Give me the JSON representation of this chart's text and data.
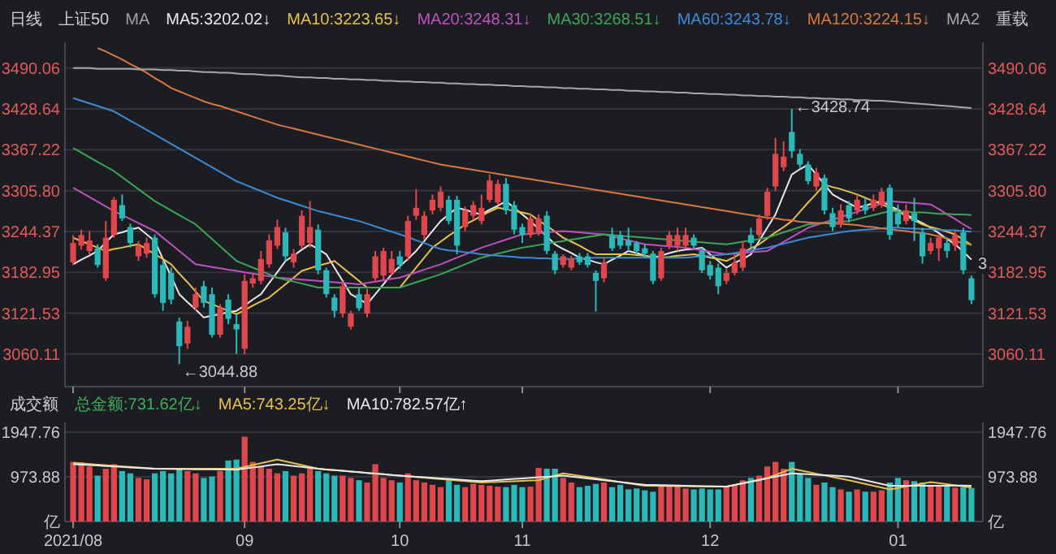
{
  "chart_data": [
    {
      "type": "candlestick",
      "title": "日线",
      "subtitle": "上证50",
      "legend_title": "MA",
      "legend": "top",
      "grid": "y",
      "tick_labels": "y",
      "categories": [
        "2021/08",
        null,
        null,
        null,
        null,
        null,
        null,
        null,
        null,
        null,
        null,
        null,
        null,
        null,
        null,
        null,
        null,
        null,
        null,
        null,
        null,
        "09",
        null,
        null,
        null,
        null,
        null,
        null,
        null,
        null,
        null,
        null,
        null,
        null,
        null,
        null,
        null,
        null,
        null,
        null,
        "10",
        null,
        null,
        null,
        null,
        null,
        null,
        null,
        null,
        null,
        null,
        null,
        null,
        null,
        null,
        "11",
        null,
        null,
        null,
        null,
        null,
        null,
        null,
        null,
        null,
        null,
        null,
        null,
        null,
        null,
        null,
        null,
        null,
        null,
        null,
        null,
        null,
        null,
        "12",
        null,
        null,
        null,
        null,
        null,
        null,
        null,
        null,
        null,
        null,
        null,
        null,
        null,
        null,
        null,
        null,
        null,
        null,
        null,
        null,
        null,
        null,
        "01",
        null,
        null,
        null,
        null,
        null,
        null,
        null,
        null,
        null
      ],
      "ohlc": [
        [
          3198,
          3239,
          3194,
          3227
        ],
        [
          3223,
          3247,
          3217,
          3239
        ],
        [
          3215,
          3245,
          3210,
          3231
        ],
        [
          3219,
          3225,
          3190,
          3194
        ],
        [
          3174,
          3260,
          3170,
          3235
        ],
        [
          3239,
          3296,
          3235,
          3292
        ],
        [
          3284,
          3300,
          3260,
          3264
        ],
        [
          3251,
          3256,
          3220,
          3227
        ],
        [
          3207,
          3230,
          3200,
          3223
        ],
        [
          3211,
          3235,
          3205,
          3227
        ],
        [
          3235,
          3240,
          3145,
          3150
        ],
        [
          3194,
          3200,
          3125,
          3137
        ],
        [
          3182,
          3190,
          3135,
          3142
        ],
        [
          3109,
          3115,
          3044.88,
          3072
        ],
        [
          3076,
          3110,
          3068,
          3101
        ],
        [
          3130,
          3160,
          3125,
          3150
        ],
        [
          3162,
          3170,
          3130,
          3137
        ],
        [
          3150,
          3160,
          3085,
          3089
        ],
        [
          3089,
          3135,
          3085,
          3129
        ],
        [
          3142,
          3150,
          3105,
          3113
        ],
        [
          3105,
          3120,
          3060,
          3097
        ],
        [
          3068,
          3180,
          3060,
          3170
        ],
        [
          3166,
          3180,
          3160,
          3174
        ],
        [
          3170,
          3215,
          3165,
          3203
        ],
        [
          3195,
          3240,
          3190,
          3231
        ],
        [
          3223,
          3262,
          3218,
          3251
        ],
        [
          3243,
          3250,
          3200,
          3207
        ],
        [
          3198,
          3218,
          3190,
          3211
        ],
        [
          3223,
          3276,
          3218,
          3268
        ],
        [
          3227,
          3290,
          3220,
          3251
        ],
        [
          3247,
          3255,
          3180,
          3186
        ],
        [
          3186,
          3190,
          3145,
          3150
        ],
        [
          3145,
          3150,
          3115,
          3125
        ],
        [
          3121,
          3170,
          3115,
          3162
        ],
        [
          3101,
          3125,
          3097,
          3121
        ],
        [
          3150,
          3160,
          3125,
          3129
        ],
        [
          3121,
          3158,
          3115,
          3150
        ],
        [
          3174,
          3215,
          3168,
          3207
        ],
        [
          3178,
          3220,
          3172,
          3215
        ],
        [
          3182,
          3215,
          3178,
          3203
        ],
        [
          3207,
          3215,
          3188,
          3194
        ],
        [
          3207,
          3268,
          3200,
          3260
        ],
        [
          3268,
          3308,
          3262,
          3280
        ],
        [
          3239,
          3275,
          3232,
          3268
        ],
        [
          3276,
          3300,
          3270,
          3292
        ],
        [
          3280,
          3312,
          3275,
          3304
        ],
        [
          3292,
          3298,
          3255,
          3260
        ],
        [
          3292,
          3298,
          3210,
          3223
        ],
        [
          3251,
          3282,
          3245,
          3276
        ],
        [
          3268,
          3290,
          3262,
          3284
        ],
        [
          3260,
          3300,
          3255,
          3280
        ],
        [
          3292,
          3330,
          3288,
          3321
        ],
        [
          3288,
          3322,
          3284,
          3316
        ],
        [
          3316,
          3325,
          3270,
          3276
        ],
        [
          3284,
          3290,
          3240,
          3247
        ],
        [
          3251,
          3256,
          3227,
          3239
        ],
        [
          3239,
          3270,
          3235,
          3264
        ],
        [
          3243,
          3270,
          3238,
          3264
        ],
        [
          3268,
          3275,
          3210,
          3215
        ],
        [
          3211,
          3215,
          3180,
          3186
        ],
        [
          3194,
          3210,
          3190,
          3207
        ],
        [
          3190,
          3208,
          3186,
          3203
        ],
        [
          3207,
          3212,
          3194,
          3198
        ],
        [
          3207,
          3212,
          3190,
          3194
        ],
        [
          3182,
          3186,
          3124,
          3170
        ],
        [
          3174,
          3205,
          3168,
          3198
        ],
        [
          3239,
          3250,
          3215,
          3219
        ],
        [
          3239,
          3245,
          3218,
          3223
        ],
        [
          3231,
          3250,
          3215,
          3223
        ],
        [
          3227,
          3230,
          3210,
          3215
        ],
        [
          3219,
          3225,
          3205,
          3211
        ],
        [
          3211,
          3215,
          3165,
          3170
        ],
        [
          3174,
          3220,
          3170,
          3215
        ],
        [
          3223,
          3245,
          3218,
          3239
        ],
        [
          3223,
          3250,
          3215,
          3239
        ],
        [
          3223,
          3250,
          3218,
          3239
        ],
        [
          3235,
          3240,
          3220,
          3223
        ],
        [
          3215,
          3220,
          3182,
          3186
        ],
        [
          3194,
          3200,
          3172,
          3178
        ],
        [
          3190,
          3196,
          3150,
          3162
        ],
        [
          3170,
          3188,
          3165,
          3182
        ],
        [
          3182,
          3210,
          3178,
          3198
        ],
        [
          3190,
          3230,
          3185,
          3219
        ],
        [
          3239,
          3250,
          3220,
          3227
        ],
        [
          3239,
          3270,
          3235,
          3264
        ],
        [
          3268,
          3310,
          3262,
          3304
        ],
        [
          3312,
          3385,
          3305,
          3361
        ],
        [
          3341,
          3380,
          3335,
          3357
        ],
        [
          3394,
          3428.74,
          3355,
          3365
        ],
        [
          3361,
          3368,
          3340,
          3345
        ],
        [
          3345,
          3350,
          3315,
          3320
        ],
        [
          3312,
          3340,
          3305,
          3333
        ],
        [
          3325,
          3330,
          3270,
          3276
        ],
        [
          3272,
          3280,
          3245,
          3251
        ],
        [
          3255,
          3285,
          3250,
          3276
        ],
        [
          3284,
          3290,
          3258,
          3264
        ],
        [
          3276,
          3300,
          3270,
          3292
        ],
        [
          3284,
          3295,
          3270,
          3276
        ],
        [
          3280,
          3300,
          3275,
          3292
        ],
        [
          3284,
          3310,
          3280,
          3304
        ],
        [
          3310,
          3315,
          3232,
          3239
        ],
        [
          3272,
          3285,
          3250,
          3255
        ],
        [
          3260,
          3285,
          3255,
          3276
        ],
        [
          3272,
          3295,
          3230,
          3260
        ],
        [
          3243,
          3250,
          3196,
          3207
        ],
        [
          3215,
          3235,
          3210,
          3227
        ],
        [
          3219,
          3240,
          3200,
          3235
        ],
        [
          3227,
          3235,
          3205,
          3215
        ],
        [
          3223,
          3245,
          3215,
          3239
        ],
        [
          3243,
          3250,
          3180,
          3186
        ],
        [
          3174,
          3178,
          3135,
          3141
        ]
      ],
      "colors": [
        "#e0474c",
        "#e0474c",
        "#e0474c",
        "#2bb8b8",
        "#e0474c",
        "#e0474c",
        "#2bb8b8",
        "#2bb8b8",
        "#e0474c",
        "#e0474c",
        "#2bb8b8",
        "#2bb8b8",
        "#2bb8b8",
        "#2bb8b8",
        "#e0474c",
        "#e0474c",
        "#2bb8b8",
        "#2bb8b8",
        "#e0474c",
        "#2bb8b8",
        "#2bb8b8",
        "#e0474c",
        "#e0474c",
        "#e0474c",
        "#e0474c",
        "#e0474c",
        "#2bb8b8",
        "#e0474c",
        "#e0474c",
        "#e0474c",
        "#2bb8b8",
        "#2bb8b8",
        "#2bb8b8",
        "#e0474c",
        "#e0474c",
        "#2bb8b8",
        "#e0474c",
        "#e0474c",
        "#e0474c",
        "#e0474c",
        "#2bb8b8",
        "#e0474c",
        "#e0474c",
        "#e0474c",
        "#e0474c",
        "#e0474c",
        "#2bb8b8",
        "#2bb8b8",
        "#e0474c",
        "#e0474c",
        "#e0474c",
        "#e0474c",
        "#e0474c",
        "#2bb8b8",
        "#2bb8b8",
        "#2bb8b8",
        "#e0474c",
        "#e0474c",
        "#2bb8b8",
        "#2bb8b8",
        "#e0474c",
        "#e0474c",
        "#2bb8b8",
        "#2bb8b8",
        "#2bb8b8",
        "#e0474c",
        "#2bb8b8",
        "#2bb8b8",
        "#2bb8b8",
        "#2bb8b8",
        "#2bb8b8",
        "#2bb8b8",
        "#e0474c",
        "#e0474c",
        "#e0474c",
        "#e0474c",
        "#2bb8b8",
        "#2bb8b8",
        "#2bb8b8",
        "#2bb8b8",
        "#e0474c",
        "#e0474c",
        "#e0474c",
        "#2bb8b8",
        "#e0474c",
        "#e0474c",
        "#e0474c",
        "#e0474c",
        "#2bb8b8",
        "#2bb8b8",
        "#2bb8b8",
        "#e0474c",
        "#2bb8b8",
        "#2bb8b8",
        "#e0474c",
        "#2bb8b8",
        "#e0474c",
        "#2bb8b8",
        "#e0474c",
        "#e0474c",
        "#2bb8b8",
        "#2bb8b8",
        "#e0474c",
        "#2bb8b8",
        "#2bb8b8",
        "#e0474c",
        "#e0474c",
        "#2bb8b8",
        "#e0474c",
        "#2bb8b8",
        "#2bb8b8"
      ],
      "series": [
        {
          "name": "MA5:3202.02↓",
          "type": "line",
          "color": "#e8e8e8",
          "values": [
            3195,
            3202,
            3208,
            3215,
            3228,
            3240,
            3243,
            3247,
            3250,
            3240,
            3230,
            3203,
            3177,
            3150,
            3138,
            3127,
            3115,
            3118,
            3120,
            3123,
            3125,
            3133,
            3142,
            3150,
            3167,
            3183,
            3200,
            3208,
            3217,
            3225,
            3218,
            3210,
            3190,
            3170,
            3150,
            3143,
            3135,
            3150,
            3165,
            3180,
            3192,
            3203,
            3215,
            3230,
            3245,
            3260,
            3270,
            3280,
            3277,
            3273,
            3270,
            3277,
            3283,
            3290,
            3280,
            3270,
            3260,
            3248,
            3237,
            3225,
            3218,
            3212,
            3205,
            3202,
            3198,
            3195,
            3202,
            3208,
            3215,
            3212,
            3208,
            3205,
            3208,
            3212,
            3215,
            3217,
            3218,
            3220,
            3210,
            3200,
            3190,
            3197,
            3203,
            3210,
            3230,
            3250,
            3270,
            3300,
            3330,
            3338,
            3345,
            3330,
            3315,
            3300,
            3293,
            3287,
            3280,
            3283,
            3287,
            3290,
            3283,
            3277,
            3270,
            3263,
            3257,
            3250,
            3242,
            3233,
            3225,
            3214,
            3202
          ]
        },
        {
          "name": "MA10:3223.65↓",
          "type": "line",
          "color": "#e6c14a",
          "values": [
            3235,
            3230,
            3225,
            3220,
            3215,
            3218,
            3220,
            3223,
            3225,
            3218,
            3210,
            3203,
            3195,
            3181,
            3168,
            3154,
            3140,
            3135,
            3130,
            3125,
            3120,
            3126,
            3133,
            3139,
            3145,
            3155,
            3165,
            3175,
            3185,
            3189,
            3193,
            3196,
            3200,
            3190,
            3180,
            3170,
            3160,
            3160,
            3160,
            3160,
            3160,
            3175,
            3190,
            3205,
            3220,
            3229,
            3238,
            3246,
            3255,
            3261,
            3268,
            3274,
            3280,
            3278,
            3275,
            3273,
            3270,
            3261,
            3253,
            3244,
            3235,
            3229,
            3223,
            3216,
            3210,
            3210,
            3210,
            3210,
            3210,
            3209,
            3208,
            3206,
            3205,
            3206,
            3208,
            3209,
            3210,
            3208,
            3205,
            3203,
            3200,
            3206,
            3213,
            3219,
            3225,
            3234,
            3243,
            3251,
            3260,
            3274,
            3288,
            3301,
            3315,
            3311,
            3308,
            3304,
            3300,
            3295,
            3290,
            3285,
            3280,
            3274,
            3268,
            3261,
            3255,
            3251,
            3248,
            3244,
            3240,
            3232,
            3224
          ]
        },
        {
          "name": "MA20:3248.31↓",
          "type": "line",
          "color": "#c04fc0",
          "values": [
            3310,
            3303,
            3296,
            3289,
            3282,
            3275,
            3269,
            3263,
            3257,
            3251,
            3245,
            3235,
            3225,
            3215,
            3205,
            3195,
            3193,
            3191,
            3189,
            3187,
            3185,
            3183,
            3181,
            3179,
            3177,
            3175,
            3174,
            3173,
            3172,
            3171,
            3170,
            3169,
            3168,
            3167,
            3166,
            3165,
            3167,
            3169,
            3171,
            3173,
            3175,
            3179,
            3183,
            3187,
            3191,
            3195,
            3200,
            3205,
            3210,
            3215,
            3220,
            3224,
            3228,
            3232,
            3236,
            3240,
            3241,
            3242,
            3243,
            3244,
            3245,
            3244,
            3243,
            3242,
            3241,
            3240,
            3237,
            3234,
            3231,
            3228,
            3225,
            3224,
            3223,
            3222,
            3221,
            3220,
            3218,
            3216,
            3214,
            3212,
            3210,
            3211,
            3212,
            3213,
            3214,
            3215,
            3222,
            3229,
            3236,
            3243,
            3250,
            3254,
            3258,
            3262,
            3266,
            3270,
            3274,
            3278,
            3282,
            3286,
            3290,
            3289,
            3288,
            3287,
            3286,
            3285,
            3278,
            3270,
            3263,
            3255,
            3248
          ]
        },
        {
          "name": "MA30:3268.51↓",
          "type": "line",
          "color": "#3aa655",
          "values": [
            3370,
            3363,
            3356,
            3349,
            3342,
            3335,
            3326,
            3317,
            3308,
            3299,
            3290,
            3283,
            3276,
            3269,
            3262,
            3255,
            3244,
            3233,
            3222,
            3211,
            3200,
            3195,
            3190,
            3185,
            3180,
            3175,
            3172,
            3169,
            3166,
            3163,
            3160,
            3160,
            3160,
            3160,
            3160,
            3160,
            3160,
            3160,
            3160,
            3160,
            3160,
            3164,
            3168,
            3172,
            3176,
            3180,
            3185,
            3190,
            3195,
            3200,
            3205,
            3208,
            3211,
            3214,
            3217,
            3220,
            3222,
            3224,
            3226,
            3228,
            3230,
            3232,
            3234,
            3236,
            3238,
            3240,
            3239,
            3238,
            3237,
            3236,
            3235,
            3234,
            3233,
            3232,
            3231,
            3230,
            3229,
            3228,
            3227,
            3226,
            3225,
            3227,
            3229,
            3231,
            3233,
            3235,
            3239,
            3243,
            3247,
            3251,
            3255,
            3256,
            3257,
            3258,
            3259,
            3260,
            3263,
            3266,
            3269,
            3272,
            3275,
            3274,
            3274,
            3273,
            3273,
            3272,
            3271,
            3271,
            3270,
            3270,
            3269
          ]
        },
        {
          "name": "MA60:3243.78↓",
          "type": "line",
          "color": "#3a8ad8",
          "values": [
            3445,
            3441,
            3437,
            3433,
            3429,
            3425,
            3418,
            3411,
            3404,
            3397,
            3390,
            3383,
            3376,
            3369,
            3362,
            3355,
            3348,
            3341,
            3334,
            3327,
            3320,
            3315,
            3310,
            3305,
            3300,
            3295,
            3291,
            3287,
            3283,
            3279,
            3275,
            3272,
            3269,
            3266,
            3263,
            3260,
            3256,
            3252,
            3248,
            3244,
            3240,
            3236,
            3231,
            3227,
            3222,
            3218,
            3216,
            3215,
            3213,
            3212,
            3210,
            3209,
            3208,
            3207,
            3206,
            3205,
            3205,
            3204,
            3204,
            3203,
            3203,
            3203,
            3204,
            3204,
            3205,
            3205,
            3205,
            3205,
            3205,
            3205,
            3205,
            3205,
            3205,
            3205,
            3205,
            3205,
            3206,
            3207,
            3208,
            3209,
            3210,
            3212,
            3214,
            3216,
            3218,
            3220,
            3223,
            3226,
            3229,
            3232,
            3235,
            3237,
            3239,
            3241,
            3243,
            3245,
            3246,
            3247,
            3248,
            3249,
            3250,
            3250,
            3249,
            3249,
            3248,
            3248,
            3247,
            3246,
            3246,
            3245,
            3244
          ]
        },
        {
          "name": "MA120:3224.15↓",
          "type": "line",
          "color": "#d9773f",
          "values": [
            null,
            null,
            null,
            3520,
            3515,
            3509,
            3503,
            3496,
            3490,
            3483,
            3475,
            3468,
            3460,
            3455,
            3450,
            3445,
            3440,
            3436,
            3433,
            3429,
            3425,
            3421,
            3417,
            3413,
            3409,
            3405,
            3402,
            3399,
            3396,
            3393,
            3390,
            3387,
            3384,
            3381,
            3378,
            3375,
            3372,
            3369,
            3366,
            3363,
            3360,
            3357,
            3354,
            3351,
            3348,
            3345,
            3343,
            3341,
            3339,
            3337,
            3335,
            3333,
            3331,
            3329,
            3327,
            3325,
            3323,
            3321,
            3319,
            3317,
            3315,
            3313,
            3311,
            3309,
            3307,
            3305,
            3303,
            3301,
            3299,
            3297,
            3295,
            3293,
            3291,
            3289,
            3287,
            3285,
            3283,
            3281,
            3279,
            3277,
            3275,
            3273,
            3271,
            3269,
            3267,
            3265,
            3264,
            3262,
            3261,
            3259,
            3258,
            3257,
            3257,
            3256,
            3256,
            3255,
            3254,
            3252,
            3251,
            3249,
            3248,
            3246,
            3245,
            3243,
            3242,
            3240,
            3237,
            3234,
            3230,
            3227,
            3224
          ]
        },
        {
          "name": "MA2",
          "type": "line",
          "color": "#a8a8a8",
          "values": [
            3490,
            3490,
            3490,
            3489,
            3489,
            3489,
            3489,
            3489,
            3488,
            3488,
            3488,
            3487,
            3487,
            3486,
            3486,
            3485,
            3484,
            3484,
            3483,
            3483,
            3482,
            3481,
            3481,
            3480,
            3479,
            3479,
            3478,
            3477,
            3476,
            3476,
            3475,
            3475,
            3474,
            3474,
            3473,
            3473,
            3472,
            3472,
            3471,
            3471,
            3470,
            3470,
            3469,
            3469,
            3468,
            3468,
            3467,
            3467,
            3466,
            3466,
            3465,
            3465,
            3464,
            3464,
            3463,
            3463,
            3462,
            3462,
            3461,
            3461,
            3460,
            3460,
            3459,
            3459,
            3458,
            3458,
            3457,
            3457,
            3456,
            3456,
            3455,
            3455,
            3454,
            3454,
            3453,
            3453,
            3452,
            3452,
            3451,
            3451,
            3450,
            3450,
            3449,
            3449,
            3448,
            3448,
            3447,
            3447,
            3446,
            3446,
            3445,
            3445,
            3444,
            3444,
            3443,
            3443,
            3442,
            3442,
            3441,
            3441,
            3440,
            3439,
            3438,
            3437,
            3436,
            3435,
            3434,
            3433,
            3432,
            3431,
            3430
          ]
        }
      ],
      "ylim": [
        3011,
        3524
      ],
      "yticks": [
        3060.11,
        3121.53,
        3182.95,
        3244.37,
        {
          "value": 3305.8,
          "label": "3305.80"
        },
        3367.22,
        3428.64,
        3490.06
      ],
      "y2lim": [
        3011,
        3524
      ],
      "y2ticks": [
        3060.11,
        3121.53,
        3182.95,
        3244.37,
        {
          "value": 3305.8,
          "label": "3305.80"
        },
        3367.22,
        3428.64,
        3490.06
      ],
      "annotations": [
        "重载",
        "←3428.74",
        "←3044.88",
        {
          "text": "3",
          "y": 3198
        }
      ]
    },
    {
      "type": "bar",
      "title": "成交额",
      "legend": "top",
      "grid": "y",
      "categories": [
        "2021/08",
        null,
        null,
        null,
        null,
        null,
        null,
        null,
        null,
        null,
        null,
        null,
        null,
        null,
        null,
        null,
        null,
        null,
        null,
        null,
        null,
        "09",
        null,
        null,
        null,
        null,
        null,
        null,
        null,
        null,
        null,
        null,
        null,
        null,
        null,
        null,
        null,
        null,
        null,
        null,
        "10",
        null,
        null,
        null,
        null,
        null,
        null,
        null,
        null,
        null,
        null,
        null,
        null,
        null,
        null,
        "11",
        null,
        null,
        null,
        null,
        null,
        null,
        null,
        null,
        null,
        null,
        null,
        null,
        null,
        null,
        null,
        null,
        null,
        null,
        null,
        null,
        null,
        null,
        "12",
        null,
        null,
        null,
        null,
        null,
        null,
        null,
        null,
        null,
        null,
        null,
        null,
        null,
        null,
        null,
        null,
        null,
        null,
        null,
        null,
        null,
        null,
        "01",
        null,
        null,
        null,
        null,
        null,
        null,
        null,
        null,
        null
      ],
      "series": [
        {
          "name": "总金额:731.62亿↓",
          "values": [
            1300,
            1290,
            1200,
            1000,
            1150,
            1250,
            1100,
            1050,
            950,
            920,
            1050,
            1100,
            1050,
            1150,
            1100,
            1050,
            950,
            980,
            1100,
            1330,
            1350,
            1850,
            1300,
            1200,
            1150,
            1050,
            1100,
            1000,
            1050,
            1150,
            1100,
            1050,
            1000,
            1000,
            950,
            900,
            850,
            1250,
            950,
            900,
            850,
            1050,
            900,
            850,
            800,
            750,
            900,
            800,
            750,
            820,
            800,
            780,
            760,
            750,
            800,
            750,
            760,
            1170,
            1150,
            1150,
            950,
            850,
            750,
            780,
            820,
            850,
            750,
            800,
            700,
            720,
            680,
            650,
            780,
            800,
            800,
            720,
            700,
            720,
            700,
            700,
            780,
            800,
            900,
            950,
            1000,
            1200,
            1300,
            1150,
            1300,
            1050,
            950,
            800,
            850,
            750,
            700,
            650,
            700,
            650,
            650,
            680,
            850,
            950,
            900,
            880,
            850,
            800,
            780,
            760,
            740,
            750,
            730
          ],
          "colors": [
            "#e0474c",
            "#e0474c",
            "#e0474c",
            "#2bb8b8",
            "#e0474c",
            "#e0474c",
            "#2bb8b8",
            "#2bb8b8",
            "#e0474c",
            "#e0474c",
            "#2bb8b8",
            "#2bb8b8",
            "#2bb8b8",
            "#2bb8b8",
            "#e0474c",
            "#e0474c",
            "#2bb8b8",
            "#2bb8b8",
            "#e0474c",
            "#2bb8b8",
            "#2bb8b8",
            "#e0474c",
            "#e0474c",
            "#e0474c",
            "#e0474c",
            "#e0474c",
            "#2bb8b8",
            "#e0474c",
            "#e0474c",
            "#e0474c",
            "#2bb8b8",
            "#2bb8b8",
            "#2bb8b8",
            "#e0474c",
            "#e0474c",
            "#2bb8b8",
            "#e0474c",
            "#e0474c",
            "#e0474c",
            "#e0474c",
            "#2bb8b8",
            "#e0474c",
            "#e0474c",
            "#e0474c",
            "#e0474c",
            "#e0474c",
            "#2bb8b8",
            "#2bb8b8",
            "#e0474c",
            "#e0474c",
            "#e0474c",
            "#e0474c",
            "#e0474c",
            "#2bb8b8",
            "#2bb8b8",
            "#2bb8b8",
            "#e0474c",
            "#e0474c",
            "#2bb8b8",
            "#2bb8b8",
            "#e0474c",
            "#e0474c",
            "#2bb8b8",
            "#2bb8b8",
            "#2bb8b8",
            "#e0474c",
            "#2bb8b8",
            "#2bb8b8",
            "#2bb8b8",
            "#2bb8b8",
            "#2bb8b8",
            "#2bb8b8",
            "#e0474c",
            "#e0474c",
            "#e0474c",
            "#e0474c",
            "#2bb8b8",
            "#2bb8b8",
            "#2bb8b8",
            "#2bb8b8",
            "#e0474c",
            "#e0474c",
            "#e0474c",
            "#2bb8b8",
            "#e0474c",
            "#e0474c",
            "#e0474c",
            "#e0474c",
            "#2bb8b8",
            "#2bb8b8",
            "#2bb8b8",
            "#e0474c",
            "#2bb8b8",
            "#2bb8b8",
            "#e0474c",
            "#2bb8b8",
            "#e0474c",
            "#2bb8b8",
            "#e0474c",
            "#e0474c",
            "#2bb8b8",
            "#2bb8b8",
            "#e0474c",
            "#2bb8b8",
            "#2bb8b8",
            "#e0474c",
            "#e0474c",
            "#2bb8b8",
            "#e0474c",
            "#2bb8b8",
            "#2bb8b8"
          ]
        },
        {
          "name": "MA5:743.25亿↓",
          "type": "line",
          "color": "#e6c14a",
          "values": [
            1280,
            1267,
            1254,
            1241,
            1228,
            1215,
            1202,
            1189,
            1176,
            1163,
            1150,
            1150,
            1150,
            1150,
            1150,
            1150,
            1150,
            1150,
            1150,
            1150,
            1150,
            1190,
            1230,
            1270,
            1310,
            1350,
            1310,
            1270,
            1230,
            1190,
            1150,
            1135,
            1120,
            1105,
            1090,
            1075,
            1060,
            1045,
            1030,
            1015,
            1000,
            985,
            970,
            955,
            940,
            925,
            910,
            895,
            880,
            865,
            850,
            857,
            864,
            871,
            879,
            886,
            893,
            900,
            950,
            1000,
            1050,
            1023,
            996,
            969,
            942,
            915,
            888,
            861,
            834,
            807,
            780,
            778,
            776,
            774,
            772,
            770,
            768,
            766,
            764,
            762,
            760,
            798,
            836,
            874,
            912,
            950,
            1017,
            1083,
            1150,
            1114,
            1079,
            1043,
            1007,
            971,
            936,
            900,
            860,
            820,
            780,
            740,
            700,
            732,
            764,
            796,
            828,
            860,
            837,
            813,
            790,
            766,
            740
          ]
        },
        {
          "name": "MA10:782.57亿↑",
          "type": "line",
          "color": "#e8e8e8",
          "values": [
            1250,
            1240,
            1230,
            1220,
            1210,
            1200,
            1190,
            1180,
            1170,
            1160,
            1150,
            1148,
            1146,
            1144,
            1142,
            1140,
            1138,
            1136,
            1134,
            1132,
            1130,
            1154,
            1178,
            1202,
            1226,
            1250,
            1230,
            1210,
            1190,
            1170,
            1150,
            1135,
            1120,
            1105,
            1090,
            1075,
            1060,
            1045,
            1030,
            1015,
            1000,
            988,
            976,
            964,
            952,
            940,
            928,
            916,
            904,
            892,
            880,
            892,
            904,
            916,
            928,
            940,
            952,
            964,
            976,
            988,
            1000,
            980,
            960,
            940,
            920,
            900,
            880,
            860,
            840,
            820,
            800,
            796,
            792,
            788,
            784,
            780,
            776,
            772,
            768,
            764,
            760,
            796,
            833,
            869,
            905,
            941,
            978,
            1014,
            1050,
            1040,
            1030,
            1020,
            1010,
            1000,
            990,
            980,
            940,
            900,
            860,
            820,
            780,
            780,
            780,
            780,
            780,
            780,
            781,
            781,
            782,
            782,
            780
          ]
        }
      ],
      "ylim": [
        0,
        2090
      ],
      "yticks": [
        {
          "value": 0,
          "label": "亿"
        },
        973.88,
        1947.76
      ],
      "y2lim": [
        0,
        2090
      ],
      "y2ticks": [
        {
          "value": 0,
          "label": "亿"
        },
        973.88,
        1947.76
      ]
    }
  ]
}
